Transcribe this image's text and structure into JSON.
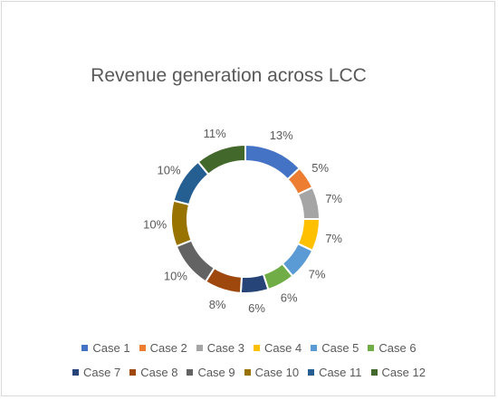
{
  "chart_data": {
    "type": "pie",
    "subtype": "doughnut",
    "title": "Revenue generation across LCC",
    "legend_position": "bottom",
    "categories": [
      "Case 1",
      "Case 2",
      "Case 3",
      "Case 4",
      "Case 5",
      "Case 6",
      "Case 7",
      "Case 8",
      "Case 9",
      "Case 10",
      "Case 11",
      "Case 12"
    ],
    "values": [
      13,
      5,
      7,
      7,
      7,
      6,
      6,
      8,
      10,
      10,
      10,
      11
    ],
    "labels": [
      "13%",
      "5%",
      "7%",
      "7%",
      "7%",
      "6%",
      "6%",
      "8%",
      "10%",
      "10%",
      "10%",
      "11%"
    ],
    "colors": [
      "#4472C4",
      "#ED7D31",
      "#A5A5A5",
      "#FFC000",
      "#5B9BD5",
      "#70AD47",
      "#264478",
      "#9E480E",
      "#636363",
      "#997300",
      "#255E91",
      "#43682B"
    ]
  }
}
